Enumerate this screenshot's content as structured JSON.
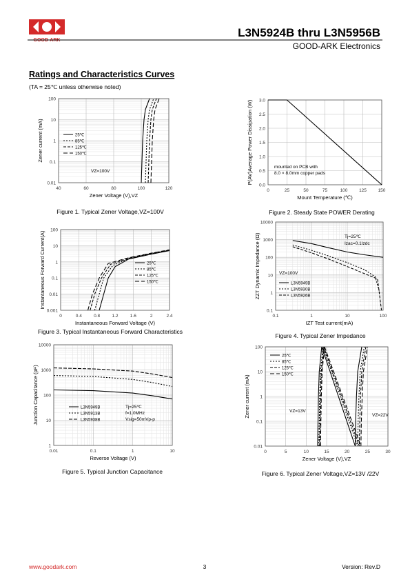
{
  "header": {
    "logo_text": "GOOD-ARK",
    "title": "L3N5924B thru L3N5956B",
    "company": "GOOD-ARK Electronics"
  },
  "section": {
    "title": "Ratings and Characteristics Curves",
    "note": "(TA = 25℃ unless otherwise noted)"
  },
  "figures": [
    {
      "caption": "Figure 1. Typical Zener Voltage,VZ=100V",
      "xlabel": "Zener Voltage (V),VZ",
      "ylabel": "Zener current (mA)",
      "xlim": [
        40,
        120
      ],
      "ylim": [
        0.01,
        100
      ],
      "ylog": true,
      "xticks": [
        40,
        60,
        80,
        100,
        120
      ],
      "yticks": [
        0.01,
        0.1,
        1,
        10,
        100
      ],
      "notes": [
        "VZ=100V"
      ],
      "series": [
        {
          "name": "25℃",
          "dash": "none",
          "x": [
            100,
            100.5,
            101,
            102,
            103,
            106
          ],
          "y": [
            0.01,
            0.1,
            1,
            10,
            30,
            100
          ]
        },
        {
          "name": "85℃",
          "dash": "2,2",
          "x": [
            103,
            103.5,
            104,
            105,
            106,
            109
          ],
          "y": [
            0.01,
            0.1,
            1,
            10,
            30,
            100
          ]
        },
        {
          "name": "125℃",
          "dash": "4,2",
          "x": [
            105,
            105.5,
            106,
            107,
            108,
            111
          ],
          "y": [
            0.01,
            0.1,
            1,
            10,
            30,
            100
          ]
        },
        {
          "name": "150℃",
          "dash": "6,3",
          "x": [
            107,
            107.5,
            108,
            109,
            110,
            113
          ],
          "y": [
            0.01,
            0.1,
            1,
            10,
            30,
            100
          ]
        }
      ]
    },
    {
      "caption": "Figure 2. Steady State POWER Derating",
      "xlabel": "Mount Temperature (℃)",
      "ylabel": "P(AV)Average Power Dissipation (W)",
      "xlim": [
        0,
        150
      ],
      "ylim": [
        0,
        3
      ],
      "xticks": [
        0,
        25,
        50,
        75,
        100,
        125,
        150
      ],
      "yticks": [
        {
          "value": 0,
          "label": "0.0"
        },
        {
          "value": 0.5,
          "label": "0.5"
        },
        {
          "value": 1,
          "label": "1.0"
        },
        {
          "value": 1.5,
          "label": "1.5"
        },
        {
          "value": 2,
          "label": "2.0"
        },
        {
          "value": 2.5,
          "label": "2.5"
        },
        {
          "value": 3,
          "label": "3.0"
        }
      ],
      "notes": [
        "mounted on PCB with",
        "8.0 × 8.0mm copper pads"
      ],
      "series": [
        {
          "name": null,
          "dash": "none",
          "x": [
            0,
            25,
            150
          ],
          "y": [
            3,
            3,
            0
          ]
        }
      ]
    },
    {
      "caption": "Figure 3. Typical Instantaneous Forward Characteristics",
      "xlabel": "Instantaneous Forward Voltage (V)",
      "ylabel": "Instantaneous Forward Current(A)",
      "xlim": [
        0,
        2.4
      ],
      "ylim": [
        0.001,
        100
      ],
      "ylog": true,
      "xticks": [
        0,
        0.4,
        0.8,
        1.2,
        1.6,
        2,
        2.4
      ],
      "yticks": [
        0.001,
        0.01,
        0.1,
        1,
        10,
        100
      ],
      "notes": [],
      "series": [
        {
          "name": "25℃",
          "dash": "none",
          "x": [
            0.85,
            0.95,
            1.05,
            1.2,
            1.5,
            2.0,
            2.4
          ],
          "y": [
            0.001,
            0.01,
            0.1,
            0.5,
            1.5,
            3,
            5
          ]
        },
        {
          "name": "85℃",
          "dash": "2,2",
          "x": [
            0.75,
            0.85,
            0.95,
            1.15,
            1.5,
            2.0,
            2.4
          ],
          "y": [
            0.001,
            0.01,
            0.1,
            0.6,
            1.6,
            3.2,
            5.2
          ]
        },
        {
          "name": "125℃",
          "dash": "4,2",
          "x": [
            0.65,
            0.75,
            0.9,
            1.1,
            1.5,
            2.0,
            2.4
          ],
          "y": [
            0.001,
            0.01,
            0.1,
            0.7,
            1.7,
            3.4,
            5.4
          ]
        },
        {
          "name": "150℃",
          "dash": "6,3",
          "x": [
            0.6,
            0.7,
            0.85,
            1.05,
            1.5,
            2.0,
            2.4
          ],
          "y": [
            0.001,
            0.01,
            0.1,
            0.8,
            1.8,
            3.5,
            5.6
          ]
        }
      ]
    },
    {
      "caption": "Figure 4. Typical Zener Impedance",
      "xlabel": "IZT Test current(mA)",
      "ylabel": "ZZT Dynamic Impedance (Ω)",
      "xlim": [
        0.1,
        100
      ],
      "ylim": [
        0.1,
        10000
      ],
      "xlog": true,
      "ylog": true,
      "xticks": [
        0.1,
        1,
        10,
        100
      ],
      "yticks": [
        0.1,
        1,
        10,
        100,
        1000,
        10000
      ],
      "notes": [
        "Tj=25℃",
        "Izac=0.1Izdc",
        "VZ=100V"
      ],
      "series": [
        {
          "name": "L3N5949B",
          "dash": "none",
          "x": [
            0.3,
            1,
            3,
            10,
            30,
            100
          ],
          "y": [
            900,
            600,
            350,
            200,
            140,
            100
          ]
        },
        {
          "name": "L3N5930B",
          "dash": "2,2",
          "x": [
            0.3,
            1,
            3,
            10,
            30,
            60,
            80
          ],
          "y": [
            500,
            250,
            120,
            50,
            20,
            8,
            1
          ]
        },
        {
          "name": "L3N5926B",
          "dash": "4,2",
          "x": [
            0.3,
            1,
            3,
            10,
            30,
            70,
            90
          ],
          "y": [
            400,
            180,
            80,
            30,
            12,
            6,
            0.1
          ]
        }
      ]
    },
    {
      "caption": "Figure 5. Typical Junction Capacitance",
      "xlabel": "Reverse Voltage (V)",
      "ylabel": "Junction Capacitance (pF)",
      "xlim": [
        0.01,
        10
      ],
      "ylim": [
        1,
        10000
      ],
      "xlog": true,
      "ylog": true,
      "xticks": [
        0.01,
        0.1,
        1,
        10
      ],
      "yticks": [
        1,
        10,
        100,
        1000,
        10000
      ],
      "notes": [
        "Tj=25℃",
        "f=1.0MHz",
        "Vsig=50mVp-p"
      ],
      "series": [
        {
          "name": "L3N5949B",
          "dash": "none",
          "x": [
            0.01,
            0.1,
            1,
            3,
            10
          ],
          "y": [
            160,
            150,
            120,
            95,
            70
          ]
        },
        {
          "name": "L3N5913B",
          "dash": "2,2",
          "x": [
            0.01,
            0.1,
            1,
            3,
            10
          ],
          "y": [
            600,
            550,
            420,
            320,
            220
          ]
        },
        {
          "name": "L3N5938B",
          "dash": "5,2",
          "x": [
            0.01,
            0.1,
            1,
            3,
            10
          ],
          "y": [
            1200,
            1100,
            900,
            700,
            500
          ]
        }
      ]
    },
    {
      "caption": "Figure 6. Typical Zener Voltage,VZ=13V /22V",
      "xlabel": "Zener Voltage (V),VZ",
      "ylabel": "Zener current (mA)",
      "xlim": [
        0,
        30
      ],
      "ylim": [
        0.01,
        100
      ],
      "ylog": true,
      "xticks": [
        0,
        5,
        10,
        15,
        20,
        25,
        30
      ],
      "yticks": [
        0.01,
        0.1,
        1,
        10,
        100
      ],
      "notes": [
        "VZ=13V",
        "VZ=22V"
      ],
      "series": [
        {
          "name": "25℃",
          "dash": "none",
          "x": [
            12.8,
            12.9,
            13,
            13.2,
            13.8,
            22,
            22.1,
            22.3,
            22.6,
            23.6
          ],
          "y": [
            0.01,
            0.1,
            1,
            10,
            100,
            0.01,
            0.1,
            1,
            10,
            100
          ]
        },
        {
          "name": "85℃",
          "dash": "2,2",
          "x": [
            13.1,
            13.2,
            13.3,
            13.5,
            14.1,
            22.6,
            22.7,
            22.9,
            23.2,
            24.2
          ],
          "y": [
            0.01,
            0.1,
            1,
            10,
            100,
            0.01,
            0.1,
            1,
            10,
            100
          ]
        },
        {
          "name": "125℃",
          "dash": "4,2",
          "x": [
            13.3,
            13.4,
            13.5,
            13.7,
            14.3,
            23,
            23.1,
            23.3,
            23.6,
            24.6
          ],
          "y": [
            0.01,
            0.1,
            1,
            10,
            100,
            0.01,
            0.1,
            1,
            10,
            100
          ]
        },
        {
          "name": "150℃",
          "dash": "6,3",
          "x": [
            13.5,
            13.6,
            13.7,
            13.9,
            14.5,
            23.4,
            23.5,
            23.7,
            24,
            25
          ],
          "y": [
            0.01,
            0.1,
            1,
            10,
            100,
            0.01,
            0.1,
            1,
            10,
            100
          ]
        }
      ]
    }
  ],
  "footer": {
    "url": "www.goodark.com",
    "page": "3",
    "version": "Version: Rev.D"
  }
}
